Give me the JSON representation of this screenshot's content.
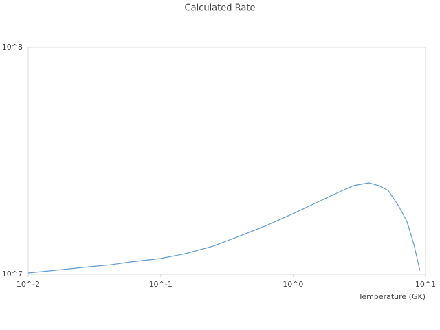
{
  "chart_data": {
    "type": "line",
    "title": "Calculated Rate",
    "x_label": "Temperature (GK)",
    "x_log": true,
    "y_log": true,
    "xlim": [
      0.01,
      10
    ],
    "ylim": [
      10000000,
      100000000
    ],
    "xticks": [
      {
        "value": 0.01,
        "label": "10^-2"
      },
      {
        "value": 0.1,
        "label": "10^-1"
      },
      {
        "value": 1,
        "label": "10^0"
      },
      {
        "value": 10,
        "label": "10^1"
      }
    ],
    "yticks": [
      {
        "value": 10000000,
        "label": "10^7"
      },
      {
        "value": 100000000,
        "label": "10^8"
      }
    ],
    "grid": true,
    "x": [
      0.01,
      0.0142,
      0.0202,
      0.029,
      0.0415,
      0.0593,
      0.1,
      0.154,
      0.249,
      0.401,
      0.646,
      1,
      1.57,
      2.25,
      2.86,
      3.72,
      4.46,
      5.23,
      6.27,
      7.23,
      8.15,
      9.07
    ],
    "series": [
      {
        "name": "Rate",
        "color": "#5b9bd5",
        "values": [
          10140000,
          10350000,
          10570000,
          10800000,
          11000000,
          11340000,
          11740000,
          12330000,
          13300000,
          14790000,
          16520000,
          18500000,
          20950000,
          23100000,
          24600000,
          25300000,
          24600000,
          23400000,
          20000000,
          17100000,
          13600000,
          10400000
        ]
      }
    ]
  }
}
